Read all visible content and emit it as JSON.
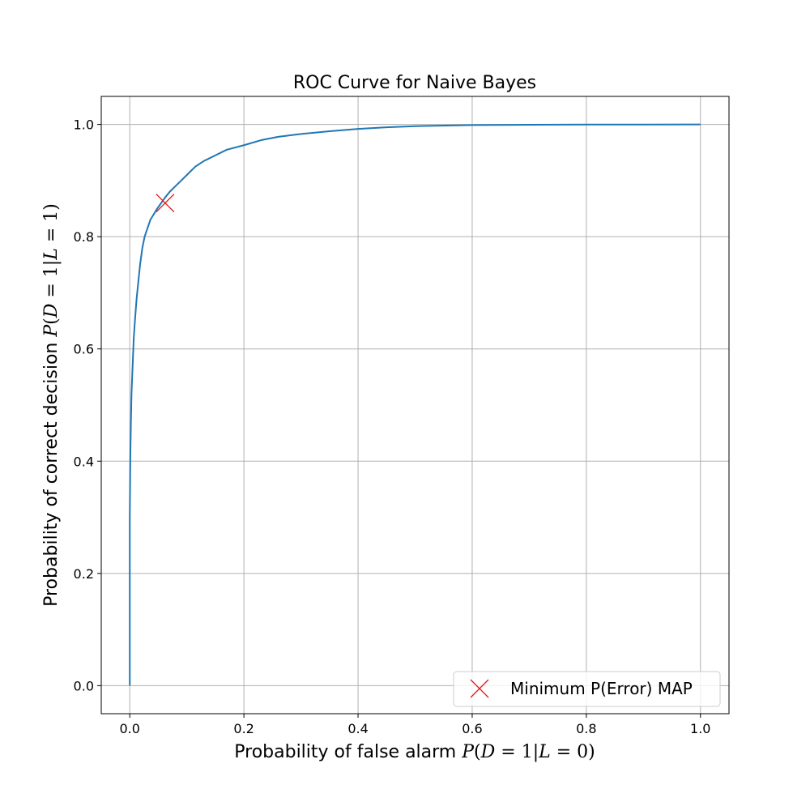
{
  "chart_data": {
    "type": "line",
    "title": "ROC Curve for Naive Bayes",
    "xlabel": {
      "prefix": "Probability of false alarm",
      "math": {
        "p": "P",
        "open": "(",
        "d": "D",
        "eq1": " = 1|",
        "l": "L",
        "eq2": " = 0)"
      }
    },
    "ylabel": {
      "prefix": "Probability of correct decision",
      "math": {
        "p": "P",
        "open": "(",
        "d": "D",
        "eq1": " = 1|",
        "l": "L",
        "eq2": " = 1)"
      }
    },
    "xlim": [
      -0.05,
      1.05
    ],
    "ylim": [
      -0.05,
      1.05
    ],
    "xticks": [
      0.0,
      0.2,
      0.4,
      0.6,
      0.8,
      1.0
    ],
    "yticks": [
      0.0,
      0.2,
      0.4,
      0.6,
      0.8,
      1.0
    ],
    "xtick_labels": [
      "0.0",
      "0.2",
      "0.4",
      "0.6",
      "0.8",
      "1.0"
    ],
    "ytick_labels": [
      "0.0",
      "0.2",
      "0.4",
      "0.6",
      "0.8",
      "1.0"
    ],
    "grid": true,
    "legend_position": "lower-right",
    "series": [
      {
        "color": "#1f77b4",
        "x": [
          0.0,
          0.0,
          0.001,
          0.002,
          0.003,
          0.005,
          0.007,
          0.009,
          0.012,
          0.015,
          0.018,
          0.022,
          0.026,
          0.031,
          0.036,
          0.042,
          0.048,
          0.055,
          0.062,
          0.07,
          0.08,
          0.09,
          0.1,
          0.115,
          0.13,
          0.15,
          0.17,
          0.2,
          0.23,
          0.26,
          0.3,
          0.35,
          0.4,
          0.45,
          0.5,
          0.6,
          0.7,
          0.8,
          0.9,
          1.0
        ],
        "y": [
          0.0,
          0.3,
          0.41,
          0.47,
          0.52,
          0.57,
          0.62,
          0.65,
          0.69,
          0.72,
          0.75,
          0.78,
          0.8,
          0.815,
          0.83,
          0.84,
          0.85,
          0.86,
          0.87,
          0.88,
          0.89,
          0.9,
          0.91,
          0.925,
          0.935,
          0.945,
          0.955,
          0.963,
          0.972,
          0.978,
          0.983,
          0.988,
          0.992,
          0.995,
          0.997,
          0.999,
          0.9995,
          0.9998,
          0.9999,
          1.0
        ]
      },
      {
        "name": "Minimum P(Error) MAP",
        "type": "marker",
        "marker": "x",
        "color": "#e31a1c",
        "x": [
          0.062
        ],
        "y": [
          0.86
        ]
      }
    ]
  }
}
